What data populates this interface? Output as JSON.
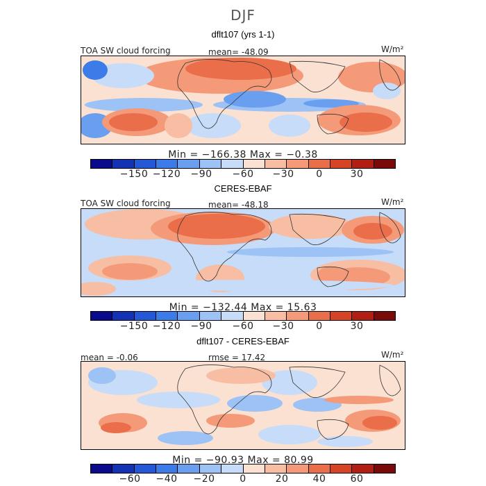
{
  "title": "DJF",
  "colors": {
    "sw": [
      "#0a0a8c",
      "#1432b4",
      "#2458d6",
      "#3c7ce8",
      "#6a9ff0",
      "#9cc2f6",
      "#c6dcf8",
      "#fbe1d2",
      "#f8bea4",
      "#f49a78",
      "#ea6e4a",
      "#d64428",
      "#b01e14",
      "#7a0a0a"
    ],
    "diff": [
      "#0a0a8c",
      "#1432b4",
      "#2458d6",
      "#3c7ce8",
      "#6a9ff0",
      "#9cc2f6",
      "#c6dcf8",
      "#fbe1d2",
      "#f8bea4",
      "#f49a78",
      "#ea6e4a",
      "#d64428",
      "#b01e14",
      "#7a0a0a"
    ]
  },
  "chart_data": [
    {
      "type": "heatmap",
      "title": "dflt107 (yrs 1-1)",
      "left_label": "TOA SW cloud forcing",
      "stat_label": "mean= -48.09",
      "units": "W/m²",
      "min_max": "Min = −166.38 Max =  −0.38",
      "mean": -48.09,
      "min": -166.38,
      "max": -0.38,
      "colorbar_ticks": [
        "−150",
        "−120",
        "−90",
        "−60",
        "−30",
        "0",
        "30"
      ],
      "colorbar_levels": [
        -180,
        -165,
        -150,
        -135,
        -120,
        -105,
        -90,
        -75,
        -60,
        -45,
        -30,
        -15,
        0,
        15,
        30,
        45
      ]
    },
    {
      "type": "heatmap",
      "title": "CERES-EBAF",
      "left_label": "TOA SW cloud forcing",
      "stat_label": "mean= -48.18",
      "units": "W/m²",
      "min_max": "Min = −132.44 Max =  15.63",
      "mean": -48.18,
      "min": -132.44,
      "max": 15.63,
      "colorbar_ticks": [
        "−150",
        "−120",
        "−90",
        "−60",
        "−30",
        "0",
        "30"
      ],
      "colorbar_levels": [
        -180,
        -165,
        -150,
        -135,
        -120,
        -105,
        -90,
        -75,
        -60,
        -45,
        -30,
        -15,
        0,
        15,
        30,
        45
      ]
    },
    {
      "type": "heatmap",
      "title": "dflt107 - CERES-EBAF",
      "left_label": "mean =  -0.06",
      "stat_label": "rmse =  17.42",
      "units": "W/m²",
      "min_max": "Min = −90.93 Max =  80.99",
      "mean": -0.06,
      "rmse": 17.42,
      "min": -90.93,
      "max": 80.99,
      "colorbar_ticks": [
        "−60",
        "−40",
        "−20",
        "0",
        "20",
        "40",
        "60"
      ],
      "colorbar_levels": [
        -80,
        -70,
        -60,
        -50,
        -40,
        -30,
        -20,
        -10,
        0,
        10,
        20,
        30,
        40,
        50,
        60,
        70,
        80
      ]
    }
  ]
}
